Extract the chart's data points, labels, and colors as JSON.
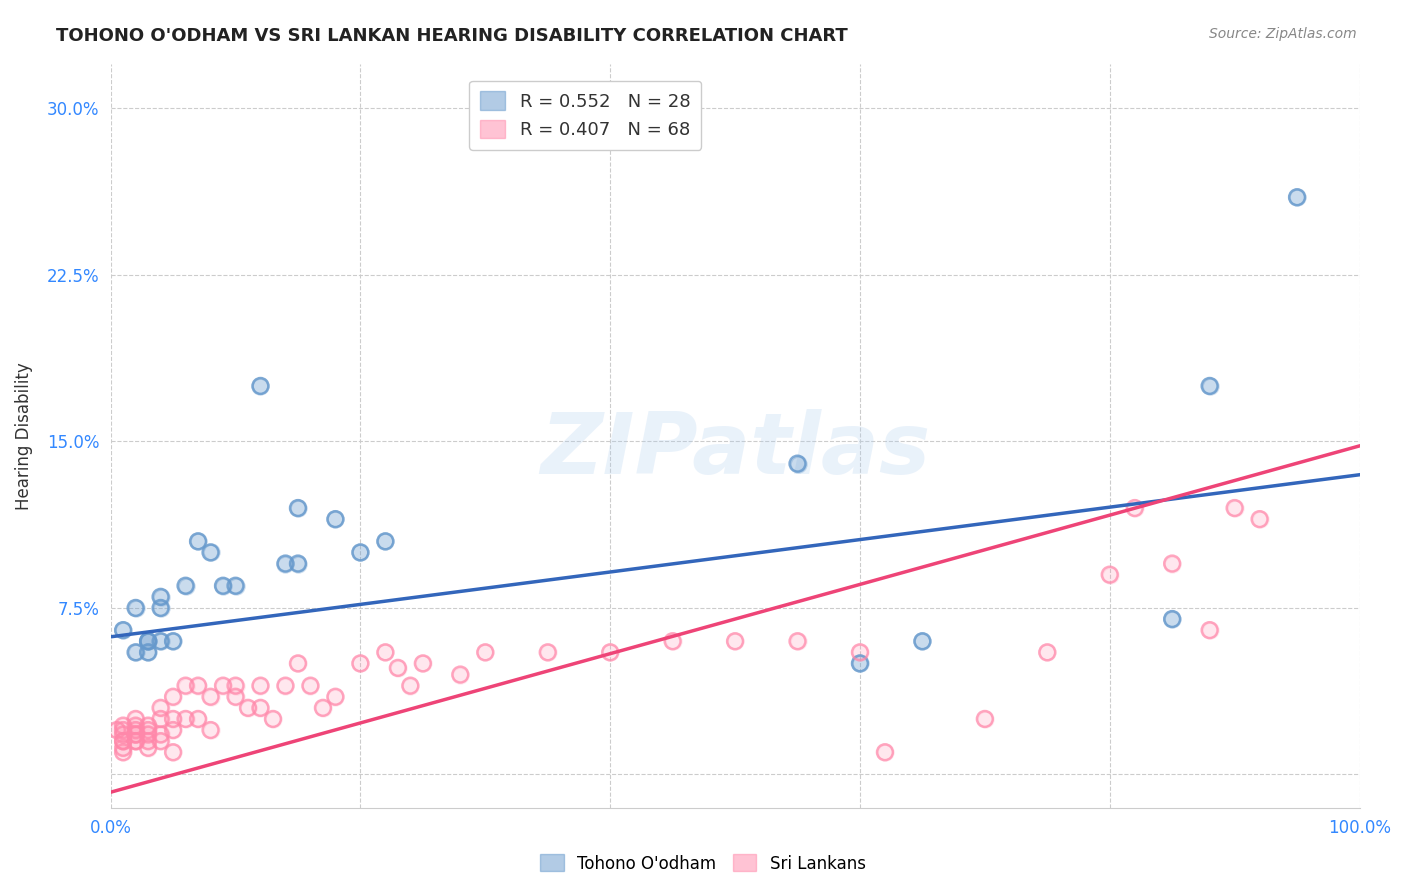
{
  "title": "TOHONO O'ODHAM VS SRI LANKAN HEARING DISABILITY CORRELATION CHART",
  "source": "Source: ZipAtlas.com",
  "ylabel": "Hearing Disability",
  "xlim": [
    0.0,
    1.0
  ],
  "ylim": [
    -0.015,
    0.32
  ],
  "yticks": [
    0.0,
    0.075,
    0.15,
    0.225,
    0.3
  ],
  "ytick_labels": [
    "",
    "7.5%",
    "15.0%",
    "22.5%",
    "30.0%"
  ],
  "xtick_labels": [
    "0.0%",
    "100.0%"
  ],
  "legend1_label": "R = 0.552   N = 28",
  "legend2_label": "R = 0.407   N = 68",
  "blue_color": "#6699CC",
  "pink_color": "#FF88AA",
  "line_blue": "#3366BB",
  "line_pink": "#EE4477",
  "background_color": "#FFFFFF",
  "grid_color": "#CCCCCC",
  "tohono_x": [
    0.01,
    0.02,
    0.02,
    0.03,
    0.03,
    0.03,
    0.04,
    0.04,
    0.04,
    0.05,
    0.06,
    0.07,
    0.08,
    0.09,
    0.1,
    0.12,
    0.14,
    0.15,
    0.15,
    0.18,
    0.2,
    0.22,
    0.55,
    0.6,
    0.65,
    0.85,
    0.88,
    0.95
  ],
  "tohono_y": [
    0.065,
    0.055,
    0.075,
    0.06,
    0.06,
    0.055,
    0.075,
    0.08,
    0.06,
    0.06,
    0.085,
    0.105,
    0.1,
    0.085,
    0.085,
    0.175,
    0.095,
    0.095,
    0.12,
    0.115,
    0.1,
    0.105,
    0.14,
    0.05,
    0.06,
    0.07,
    0.175,
    0.26
  ],
  "srilanka_x": [
    0.005,
    0.01,
    0.01,
    0.01,
    0.01,
    0.01,
    0.01,
    0.01,
    0.02,
    0.02,
    0.02,
    0.02,
    0.02,
    0.02,
    0.02,
    0.03,
    0.03,
    0.03,
    0.03,
    0.03,
    0.04,
    0.04,
    0.04,
    0.04,
    0.05,
    0.05,
    0.05,
    0.05,
    0.06,
    0.06,
    0.07,
    0.07,
    0.08,
    0.08,
    0.09,
    0.1,
    0.1,
    0.11,
    0.12,
    0.12,
    0.13,
    0.14,
    0.15,
    0.16,
    0.17,
    0.18,
    0.2,
    0.22,
    0.23,
    0.24,
    0.25,
    0.28,
    0.3,
    0.35,
    0.4,
    0.45,
    0.5,
    0.55,
    0.6,
    0.62,
    0.7,
    0.75,
    0.8,
    0.82,
    0.85,
    0.88,
    0.9,
    0.92
  ],
  "srilanka_y": [
    0.02,
    0.015,
    0.02,
    0.018,
    0.022,
    0.015,
    0.01,
    0.012,
    0.015,
    0.02,
    0.018,
    0.025,
    0.022,
    0.015,
    0.018,
    0.02,
    0.018,
    0.022,
    0.015,
    0.012,
    0.025,
    0.03,
    0.018,
    0.015,
    0.035,
    0.025,
    0.02,
    0.01,
    0.04,
    0.025,
    0.04,
    0.025,
    0.035,
    0.02,
    0.04,
    0.04,
    0.035,
    0.03,
    0.04,
    0.03,
    0.025,
    0.04,
    0.05,
    0.04,
    0.03,
    0.035,
    0.05,
    0.055,
    0.048,
    0.04,
    0.05,
    0.045,
    0.055,
    0.055,
    0.055,
    0.06,
    0.06,
    0.06,
    0.055,
    0.01,
    0.025,
    0.055,
    0.09,
    0.12,
    0.095,
    0.065,
    0.12,
    0.115
  ],
  "tohono_line_x": [
    0.0,
    1.0
  ],
  "tohono_line_y": [
    0.062,
    0.135
  ],
  "srilanka_line_x": [
    0.0,
    1.0
  ],
  "srilanka_line_y": [
    -0.008,
    0.148
  ],
  "watermark": "ZIPatlas",
  "watermark_color": "#AACCEE",
  "watermark_alpha": 0.25
}
